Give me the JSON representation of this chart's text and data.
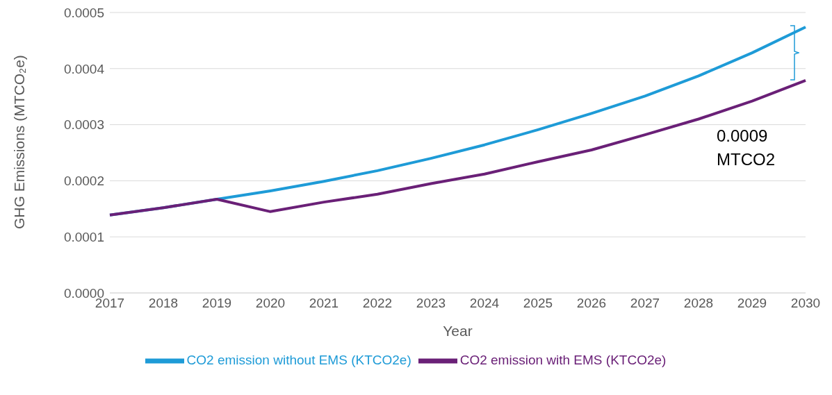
{
  "chart_data": {
    "type": "line",
    "xlabel": "Year",
    "ylabel": "GHG Emissions (MTCO₂e)",
    "categories": [
      "2017",
      "2018",
      "2019",
      "2020",
      "2021",
      "2022",
      "2023",
      "2024",
      "2025",
      "2026",
      "2027",
      "2028",
      "2029",
      "2030"
    ],
    "series": [
      {
        "name": "CO2 emission without EMS (KTCO2e)",
        "color": "#1e9bd7",
        "values": [
          0.000139,
          0.000152,
          0.000167,
          0.000182,
          0.000199,
          0.000218,
          0.00024,
          0.000264,
          0.000291,
          0.00032,
          0.000351,
          0.000387,
          0.000428,
          0.000474
        ]
      },
      {
        "name": "CO2 emission with EMS (KTCO2e)",
        "color": "#6a2077",
        "values": [
          0.000139,
          0.000152,
          0.000167,
          0.000145,
          0.000162,
          0.000176,
          0.000195,
          0.000212,
          0.000234,
          0.000255,
          0.000282,
          0.00031,
          0.000342,
          0.000379
        ]
      }
    ],
    "ylim": [
      0,
      0.0005
    ],
    "yticks": [
      {
        "value": 0,
        "label": "0.0000"
      },
      {
        "value": 0.0001,
        "label": "0.0001"
      },
      {
        "value": 0.0002,
        "label": "0.0002"
      },
      {
        "value": 0.0003,
        "label": "0.0003"
      },
      {
        "value": 0.0004,
        "label": "0.0004"
      },
      {
        "value": 0.0005,
        "label": "0.0005"
      }
    ],
    "grid": "y",
    "legend": "bottom",
    "marker": "none",
    "line_style": "solid",
    "annotations": [
      "0.0009 MTCO2"
    ]
  }
}
